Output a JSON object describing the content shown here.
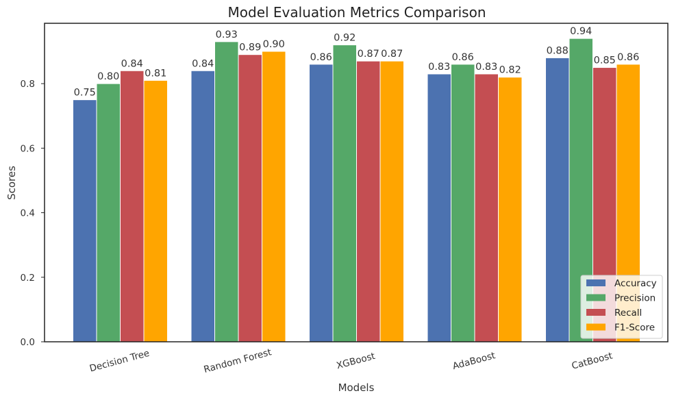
{
  "chart_data": {
    "type": "bar",
    "title": "Model Evaluation Metrics Comparison",
    "xlabel": "Models",
    "ylabel": "Scores",
    "ylim": [
      0,
      0.987
    ],
    "yticks": [
      "0.0",
      "0.2",
      "0.4",
      "0.6",
      "0.8"
    ],
    "grid": false,
    "legend_position": "lower-right",
    "categories": [
      "Decision Tree",
      "Random Forest",
      "XGBoost",
      "AdaBoost",
      "CatBoost"
    ],
    "series": [
      {
        "name": "Accuracy",
        "color": "#4c72b0",
        "values": [
          0.75,
          0.84,
          0.86,
          0.83,
          0.88
        ]
      },
      {
        "name": "Precision",
        "color": "#55a868",
        "values": [
          0.8,
          0.93,
          0.92,
          0.86,
          0.94
        ]
      },
      {
        "name": "Recall",
        "color": "#c44e52",
        "values": [
          0.84,
          0.89,
          0.87,
          0.83,
          0.85
        ]
      },
      {
        "name": "F1-Score",
        "color": "#ffa500",
        "values": [
          0.81,
          0.9,
          0.87,
          0.82,
          0.86
        ]
      }
    ]
  }
}
